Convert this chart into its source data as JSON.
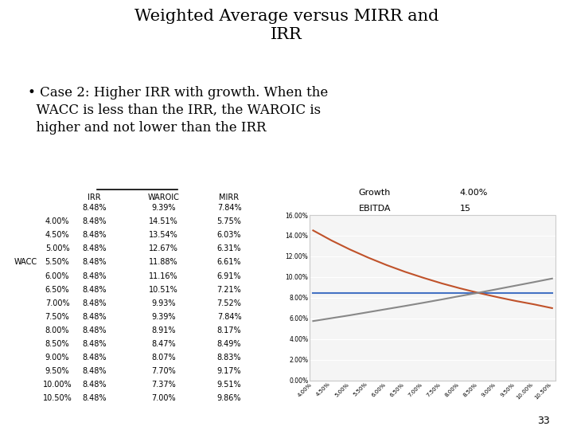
{
  "title": "Weighted Average versus MIRR and\nIRR",
  "bullet_line1": "• Case 2: Higher IRR with growth. When the",
  "bullet_line2": "  WACC is less than the IRR, the WAROIC is",
  "bullet_line3": "  higher and not lower than the IRR",
  "table_headers": [
    "IRR",
    "WAROIC",
    "MIRR"
  ],
  "wacc_label_row_idx": 4,
  "table_data": [
    [
      "",
      "8.48%",
      "9.39%",
      "7.84%"
    ],
    [
      "4.00%",
      "8.48%",
      "14.51%",
      "5.75%"
    ],
    [
      "4.50%",
      "8.48%",
      "13.54%",
      "6.03%"
    ],
    [
      "5.00%",
      "8.48%",
      "12.67%",
      "6.31%"
    ],
    [
      "5.50%",
      "8.48%",
      "11.88%",
      "6.61%"
    ],
    [
      "6.00%",
      "8.48%",
      "11.16%",
      "6.91%"
    ],
    [
      "6.50%",
      "8.48%",
      "10.51%",
      "7.21%"
    ],
    [
      "7.00%",
      "8.48%",
      "9.93%",
      "7.52%"
    ],
    [
      "7.50%",
      "8.48%",
      "9.39%",
      "7.84%"
    ],
    [
      "8.00%",
      "8.48%",
      "8.91%",
      "8.17%"
    ],
    [
      "8.50%",
      "8.48%",
      "8.47%",
      "8.49%"
    ],
    [
      "9.00%",
      "8.48%",
      "8.07%",
      "8.83%"
    ],
    [
      "9.50%",
      "8.48%",
      "7.70%",
      "9.17%"
    ],
    [
      "10.00%",
      "8.48%",
      "7.37%",
      "9.51%"
    ],
    [
      "10.50%",
      "8.48%",
      "7.00%",
      "9.86%"
    ]
  ],
  "chart_x_labels": [
    "4.00%",
    "4.50%",
    "5.00%",
    "5.50%",
    "6.00%",
    "6.50%",
    "7.00%",
    "7.50%",
    "8.00%",
    "8.50%",
    "9.00%",
    "9.50%",
    "10.00%",
    "10.50%"
  ],
  "IRR_values": [
    8.48,
    8.48,
    8.48,
    8.48,
    8.48,
    8.48,
    8.48,
    8.48,
    8.48,
    8.48,
    8.48,
    8.48,
    8.48,
    8.48
  ],
  "WAROIC_values": [
    14.51,
    13.54,
    12.67,
    11.88,
    11.16,
    10.51,
    9.93,
    9.39,
    8.91,
    8.47,
    8.07,
    7.7,
    7.37,
    7.0
  ],
  "MIRR_values": [
    5.75,
    6.03,
    6.31,
    6.61,
    6.91,
    7.21,
    7.52,
    7.84,
    8.17,
    8.49,
    8.83,
    9.17,
    9.51,
    9.86
  ],
  "chart_ylim": [
    0.0,
    16.0
  ],
  "chart_yticks": [
    0.0,
    2.0,
    4.0,
    6.0,
    8.0,
    10.0,
    12.0,
    14.0,
    16.0
  ],
  "chart_ytick_labels": [
    "0.00%",
    "2.00%",
    "4.00%",
    "6.00%",
    "8.00%",
    "10.00%",
    "12.00%",
    "14.00%",
    "16.00%"
  ],
  "irr_color": "#4472c4",
  "waroic_color": "#c0522a",
  "mirr_color": "#888888",
  "growth_label": "Growth",
  "growth_value": "4.00%",
  "ebitda_label": "EBITDA",
  "ebitda_value": "15",
  "bg_color": "#ffffff",
  "page_number": "33"
}
